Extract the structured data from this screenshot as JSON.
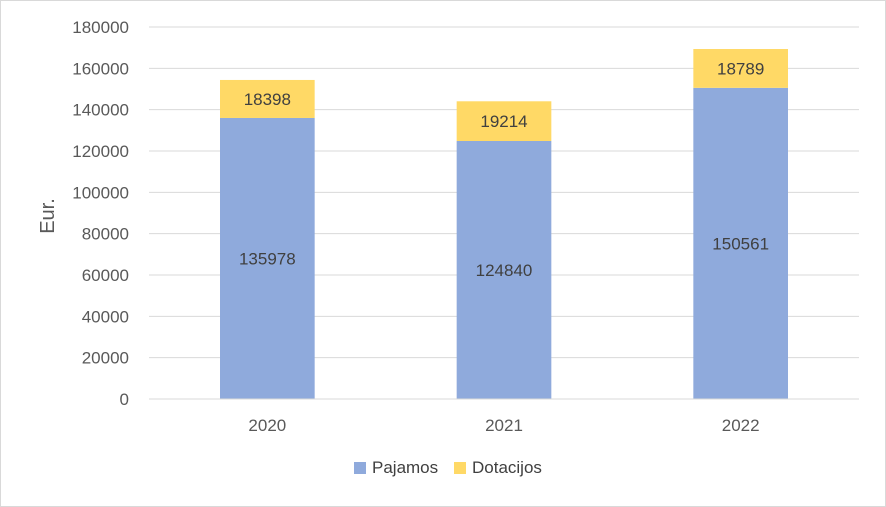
{
  "chart_data": {
    "type": "bar",
    "stacked": true,
    "title": "",
    "xlabel": "",
    "ylabel": "Eur.",
    "ylim": [
      0,
      180000
    ],
    "yticks": [
      0,
      20000,
      40000,
      60000,
      80000,
      100000,
      120000,
      140000,
      160000,
      180000
    ],
    "grid": true,
    "legend_position": "bottom",
    "categories": [
      "2020",
      "2021",
      "2022"
    ],
    "series": [
      {
        "name": "Pajamos",
        "color": "#8faadc",
        "values": [
          135978,
          124840,
          150561
        ]
      },
      {
        "name": "Dotacijos",
        "color": "#ffd966",
        "values": [
          18398,
          19214,
          18789
        ]
      }
    ]
  }
}
